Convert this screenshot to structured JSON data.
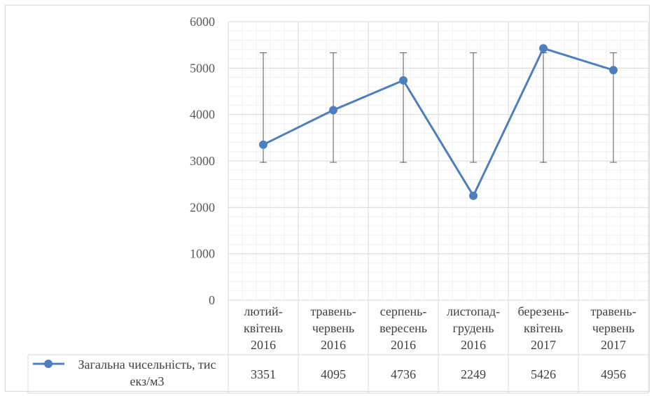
{
  "chart_data": {
    "type": "line",
    "categories": [
      [
        "лютий-",
        "квітень",
        "2016"
      ],
      [
        "травень-",
        "червень",
        "2016"
      ],
      [
        "серпень-",
        "вересень",
        "2016"
      ],
      [
        "листопад-",
        "грудень",
        "2016"
      ],
      [
        "березень-",
        "квітень",
        "2017"
      ],
      [
        "травень-",
        "червень",
        "2017"
      ]
    ],
    "series": [
      {
        "name": [
          "Загальна чисельність, тис",
          "екз/м3"
        ],
        "values": [
          3351,
          4095,
          4736,
          2249,
          5426,
          4956
        ],
        "error_bars": {
          "low": 2970,
          "high": 5330
        }
      }
    ],
    "value_labels": [
      "3351",
      "4095",
      "4736",
      "2249",
      "5426",
      "4956"
    ],
    "yticks": [
      "0",
      "1000",
      "2000",
      "3000",
      "4000",
      "5000",
      "6000"
    ],
    "ylim": [
      0,
      6000
    ],
    "ymajor": 1000,
    "yminor": 200,
    "grid": true,
    "data_table": true,
    "colors": {
      "series": "#4f7ebe",
      "error_bar": "#595959",
      "grid_major": "#d9d9d9",
      "grid_minor": "#efefef"
    }
  }
}
